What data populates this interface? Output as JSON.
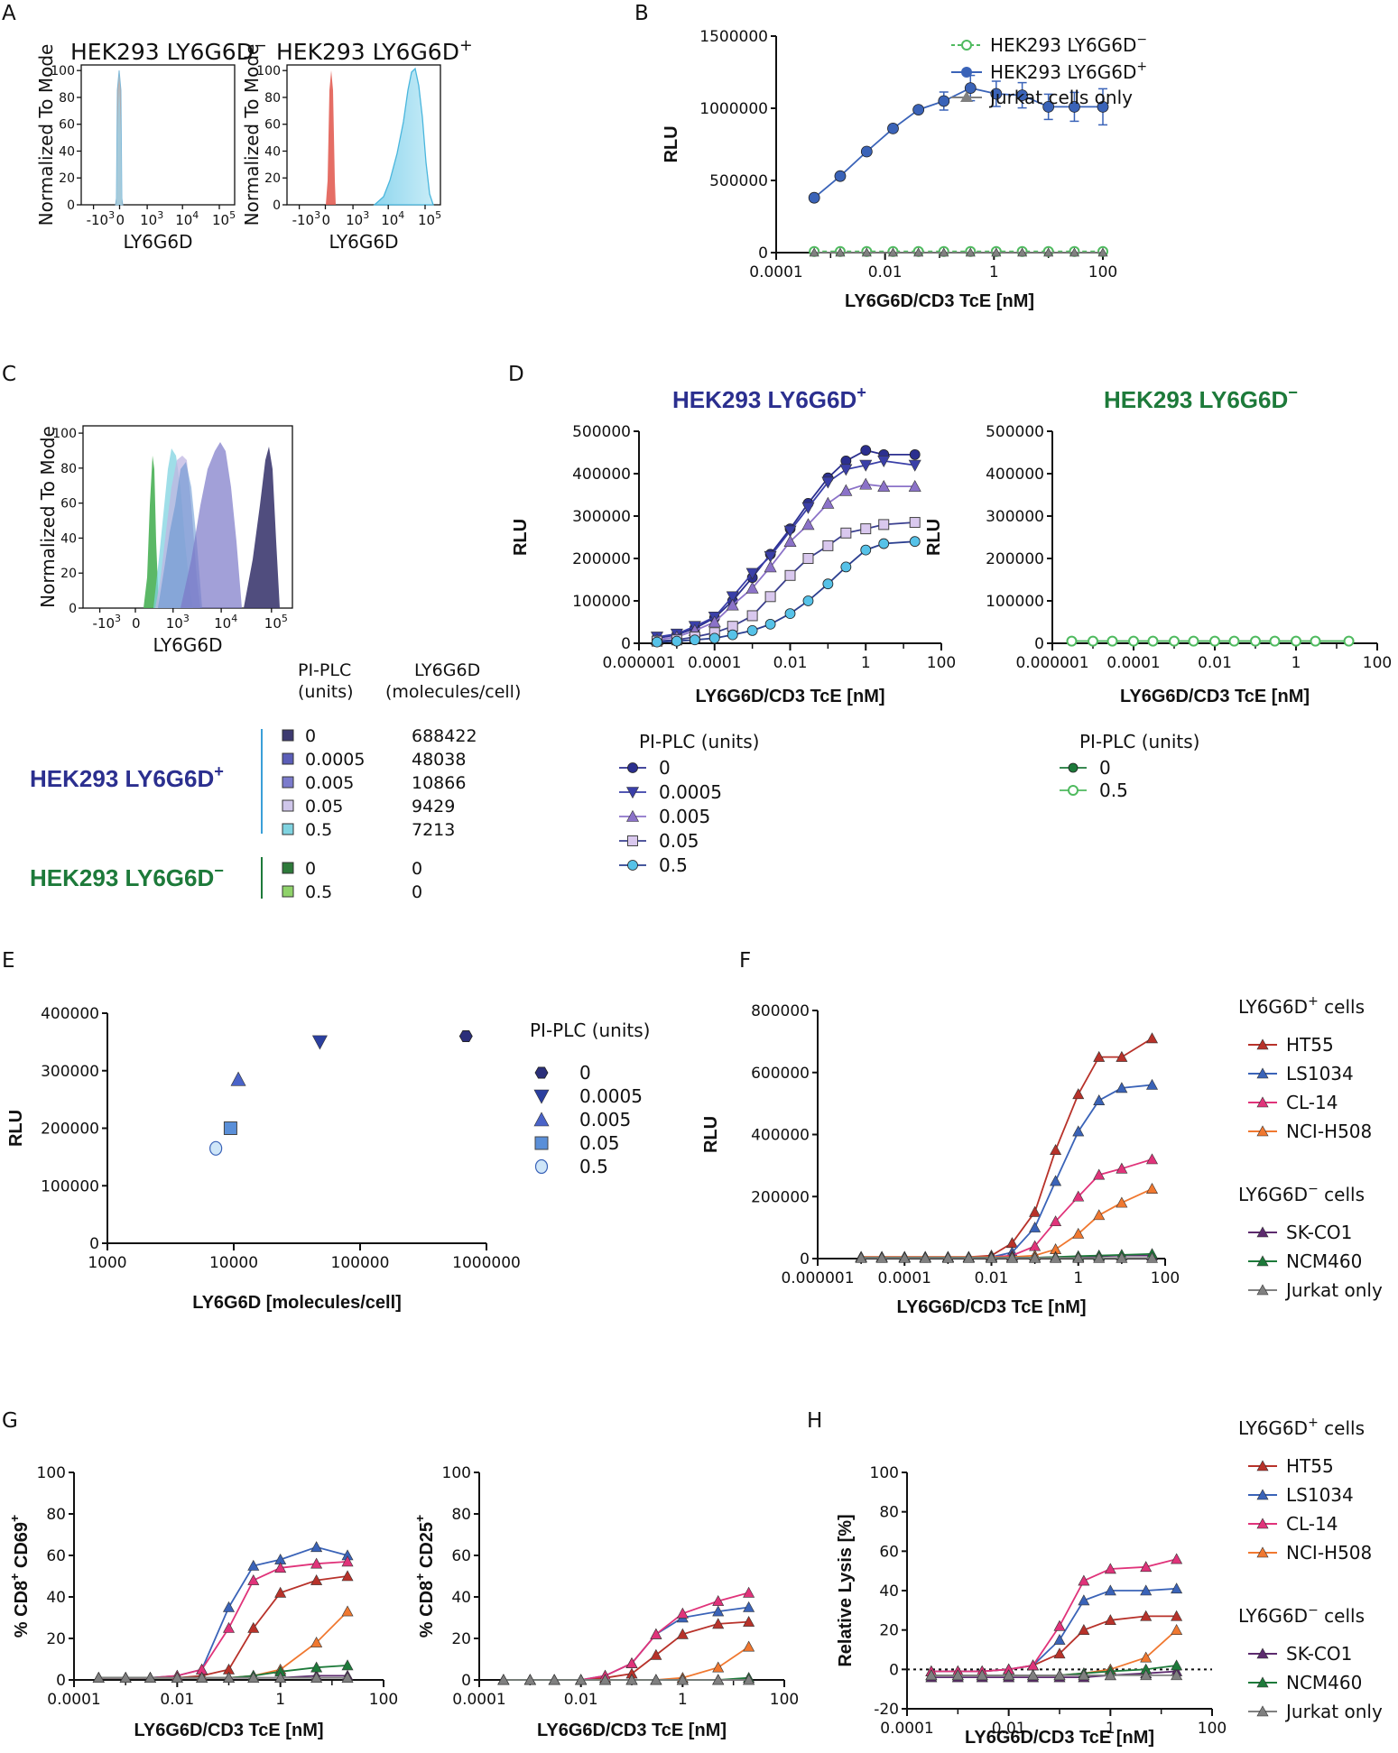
{
  "panel_letters": {
    "A": "A",
    "B": "B",
    "C": "C",
    "D": "D",
    "E": "E",
    "F": "F",
    "G": "G",
    "H": "H"
  },
  "colors": {
    "navy": "#2b2f8f",
    "blue": "#3a63b8",
    "green": "#4fba5f",
    "darkgreen": "#1d7a3a",
    "red": "#b8322a",
    "pink": "#e0337a",
    "orange": "#f07830",
    "purple": "#5c2a6e",
    "gray": "#808080",
    "hek_minus": "#1d7a3a"
  },
  "labels": {
    "hek_minus_text": "HEK293 LY6G6D",
    "minus": "−",
    "hek_plus_text": "HEK293 LY6G6D",
    "plus": "+",
    "jurkat_cells_only": "Jurkat cells only",
    "ly6g6d": "LY6G6D",
    "normalized": "Normalized To Mode",
    "rlu": "RLU",
    "tce": "LY6G6D/CD3 TcE [nM]",
    "pi_plc": "PI-PLC (units)",
    "pi_plc_l1": "PI-PLC",
    "pi_plc_l2": "(units)",
    "ly6_l1": "LY6G6D",
    "ly6_l2": "(molecules/cell)",
    "molecules": "LY6G6D [molecules/cell]",
    "ly_pos_cells": "LY6G6D",
    "ly_pos_cells_sup": "+",
    "cells": " cells",
    "ly_neg_cells": "LY6G6D",
    "ly_neg_cells_sup": "−",
    "cd69_a": "% CD8",
    "cd69_sup1": "+",
    "cd69_b": " CD69",
    "cd69_sup2": "+",
    "cd25_a": "% CD8",
    "cd25_sup1": "+",
    "cd25_b": " CD25",
    "cd25_sup2": "+",
    "lysis": "Relative Lysis [%]"
  },
  "histo_ticks": {
    "m3": "-10",
    "zero": "0",
    "p3": "10",
    "p4": "10",
    "p5": "10",
    "e3": "3",
    "e4": "4",
    "e5": "5",
    "y": [
      "0",
      "20",
      "40",
      "60",
      "80",
      "100"
    ]
  },
  "panel_c_table": {
    "plus_rows": [
      {
        "units": "0",
        "molecules": "688422"
      },
      {
        "units": "0.0005",
        "molecules": "48038"
      },
      {
        "units": "0.005",
        "molecules": "10866"
      },
      {
        "units": "0.05",
        "molecules": "9429"
      },
      {
        "units": "0.5",
        "molecules": "7213"
      }
    ],
    "minus_rows": [
      {
        "units": "0",
        "molecules": "0"
      },
      {
        "units": "0.5",
        "molecules": "0"
      }
    ]
  },
  "legend_d_plus": [
    "0",
    "0.0005",
    "0.005",
    "0.05",
    "0.5"
  ],
  "legend_d_minus": [
    "0",
    "0.5"
  ],
  "legend_e": [
    "0",
    "0.0005",
    "0.005",
    "0.05",
    "0.5"
  ],
  "legend_cells_pos": [
    "HT55",
    "LS1034",
    "CL-14",
    "NCI-H508"
  ],
  "legend_cells_neg": [
    "SK-CO1",
    "NCM460",
    "Jurkat only"
  ],
  "chart_data": [
    {
      "id": "B",
      "type": "scatter",
      "title": "",
      "xlabel": "LY6G6D/CD3 TcE [nM]",
      "ylabel": "RLU",
      "xscale": "log",
      "xlim": [
        0.0001,
        100
      ],
      "ylim": [
        0,
        1500000
      ],
      "xticks": [
        "0.0001",
        "0.01",
        "1",
        "100"
      ],
      "yticks": [
        "0",
        "500000",
        "1000000",
        "1500000"
      ],
      "x": [
        0.0005,
        0.0015,
        0.0046,
        0.014,
        0.041,
        0.12,
        0.37,
        1.1,
        3.3,
        10,
        30,
        100
      ],
      "series": [
        {
          "name": "HEK293 LY6G6D+",
          "values": [
            380000,
            530000,
            700000,
            860000,
            990000,
            1050000,
            1140000,
            1100000,
            1090000,
            1010000,
            1010000,
            1010000
          ]
        },
        {
          "name": "HEK293 LY6G6D-",
          "values": [
            8000,
            8000,
            8000,
            8000,
            8000,
            8000,
            8000,
            8000,
            8000,
            8000,
            8000,
            8000
          ]
        },
        {
          "name": "Jurkat cells only",
          "values": [
            0,
            0,
            0,
            0,
            0,
            0,
            0,
            0,
            0,
            0,
            0,
            0
          ]
        }
      ]
    },
    {
      "id": "D_plus",
      "type": "scatter",
      "title": "HEK293 LY6G6D+",
      "xlabel": "LY6G6D/CD3 TcE [nM]",
      "ylabel": "RLU",
      "xscale": "log",
      "xlim": [
        1e-06,
        100
      ],
      "ylim": [
        0,
        500000
      ],
      "xticks": [
        "0.000001",
        "0.0001",
        "0.01",
        "1",
        "100"
      ],
      "yticks": [
        "0",
        "100000",
        "200000",
        "300000",
        "400000",
        "500000"
      ],
      "x": [
        3e-06,
        1e-05,
        3e-05,
        0.0001,
        0.0003,
        0.001,
        0.003,
        0.01,
        0.03,
        0.1,
        0.3,
        1,
        3,
        20
      ],
      "series": [
        {
          "name": "0",
          "values": [
            12000,
            20000,
            35000,
            60000,
            100000,
            155000,
            210000,
            270000,
            330000,
            390000,
            430000,
            455000,
            445000,
            445000
          ]
        },
        {
          "name": "0.0005",
          "values": [
            15000,
            22000,
            40000,
            62000,
            110000,
            165000,
            205000,
            265000,
            320000,
            380000,
            410000,
            420000,
            430000,
            420000
          ]
        },
        {
          "name": "0.005",
          "values": [
            8000,
            15000,
            30000,
            50000,
            90000,
            130000,
            180000,
            240000,
            280000,
            330000,
            360000,
            375000,
            370000,
            370000
          ]
        },
        {
          "name": "0.05",
          "values": [
            5000,
            8000,
            15000,
            25000,
            40000,
            65000,
            110000,
            160000,
            200000,
            230000,
            260000,
            270000,
            280000,
            285000
          ]
        },
        {
          "name": "0.5",
          "values": [
            3000,
            5000,
            8000,
            12000,
            20000,
            30000,
            45000,
            70000,
            100000,
            140000,
            180000,
            220000,
            235000,
            240000
          ]
        }
      ]
    },
    {
      "id": "D_minus",
      "type": "scatter",
      "title": "HEK293 LY6G6D-",
      "xlabel": "LY6G6D/CD3 TcE [nM]",
      "ylabel": "RLU",
      "xscale": "log",
      "xlim": [
        1e-06,
        100
      ],
      "ylim": [
        0,
        500000
      ],
      "xticks": [
        "0.000001",
        "0.0001",
        "0.01",
        "1",
        "100"
      ],
      "yticks": [
        "0",
        "100000",
        "200000",
        "300000",
        "400000",
        "500000"
      ],
      "x": [
        3e-06,
        1e-05,
        3e-05,
        0.0001,
        0.0003,
        0.001,
        0.003,
        0.01,
        0.03,
        0.1,
        0.3,
        1,
        3,
        20
      ],
      "series": [
        {
          "name": "0",
          "values": [
            5000,
            5000,
            5000,
            5000,
            5000,
            5000,
            5000,
            5000,
            5000,
            5000,
            5000,
            5000,
            5000,
            5000
          ]
        },
        {
          "name": "0.5",
          "values": [
            5000,
            5000,
            5000,
            5000,
            5000,
            5000,
            5000,
            5000,
            5000,
            5000,
            5000,
            5000,
            5000,
            5000
          ]
        }
      ]
    },
    {
      "id": "E",
      "type": "scatter",
      "title": "",
      "xlabel": "LY6G6D [molecules/cell]",
      "ylabel": "RLU",
      "xscale": "log",
      "xlim": [
        1000,
        1000000
      ],
      "ylim": [
        0,
        400000
      ],
      "xticks": [
        "1000",
        "10000",
        "100000",
        "1000000"
      ],
      "yticks": [
        "0",
        "100000",
        "200000",
        "300000",
        "400000"
      ],
      "points": [
        {
          "name": "0",
          "x": 688422,
          "y": 360000
        },
        {
          "name": "0.0005",
          "x": 48038,
          "y": 350000
        },
        {
          "name": "0.005",
          "x": 10866,
          "y": 285000
        },
        {
          "name": "0.05",
          "x": 9429,
          "y": 200000
        },
        {
          "name": "0.5",
          "x": 7213,
          "y": 165000
        }
      ]
    },
    {
      "id": "F",
      "type": "scatter",
      "title": "",
      "xlabel": "LY6G6D/CD3 TcE [nM]",
      "ylabel": "RLU",
      "xscale": "log",
      "xlim": [
        1e-06,
        100
      ],
      "ylim": [
        0,
        800000
      ],
      "xticks": [
        "0.000001",
        "0.0001",
        "0.01",
        "1",
        "100"
      ],
      "yticks": [
        "0",
        "200000",
        "400000",
        "600000",
        "800000"
      ],
      "x": [
        1e-05,
        3e-05,
        0.0001,
        0.0003,
        0.001,
        0.003,
        0.01,
        0.03,
        0.1,
        0.3,
        1,
        3,
        10,
        50
      ],
      "series": [
        {
          "name": "HT55",
          "values": [
            5000,
            5000,
            5000,
            5000,
            5000,
            5000,
            10000,
            50000,
            150000,
            350000,
            530000,
            650000,
            650000,
            710000
          ]
        },
        {
          "name": "LS1034",
          "values": [
            5000,
            5000,
            5000,
            5000,
            5000,
            5000,
            5000,
            20000,
            100000,
            250000,
            410000,
            510000,
            550000,
            560000
          ]
        },
        {
          "name": "CL-14",
          "values": [
            5000,
            5000,
            5000,
            5000,
            5000,
            5000,
            5000,
            10000,
            40000,
            120000,
            200000,
            270000,
            290000,
            320000
          ]
        },
        {
          "name": "NCI-H508",
          "values": [
            5000,
            5000,
            5000,
            5000,
            5000,
            5000,
            5000,
            5000,
            10000,
            30000,
            80000,
            140000,
            180000,
            225000
          ]
        },
        {
          "name": "SK-CO1",
          "values": [
            3000,
            3000,
            3000,
            3000,
            3000,
            3000,
            3000,
            3000,
            3000,
            5000,
            5000,
            8000,
            10000,
            10000
          ]
        },
        {
          "name": "NCM460",
          "values": [
            3000,
            3000,
            3000,
            3000,
            3000,
            3000,
            3000,
            3000,
            3000,
            5000,
            8000,
            10000,
            12000,
            15000
          ]
        },
        {
          "name": "Jurkat only",
          "values": [
            2000,
            2000,
            2000,
            2000,
            2000,
            2000,
            2000,
            2000,
            2000,
            2000,
            2000,
            2000,
            2000,
            2000
          ]
        }
      ]
    },
    {
      "id": "G_CD69",
      "type": "scatter",
      "title": "",
      "xlabel": "LY6G6D/CD3 TcE [nM]",
      "ylabel": "% CD8+ CD69+",
      "xscale": "log",
      "xlim": [
        0.0001,
        100
      ],
      "ylim": [
        0,
        100
      ],
      "xticks": [
        "0.0001",
        "0.01",
        "1",
        "100"
      ],
      "yticks": [
        "0",
        "20",
        "40",
        "60",
        "80",
        "100"
      ],
      "x": [
        0.0003,
        0.001,
        0.003,
        0.01,
        0.03,
        0.1,
        0.3,
        1,
        5,
        20
      ],
      "series": [
        {
          "name": "HT55",
          "values": [
            1,
            1,
            1,
            1,
            2,
            5,
            25,
            42,
            48,
            50
          ]
        },
        {
          "name": "LS1034",
          "values": [
            1,
            1,
            1,
            2,
            5,
            35,
            55,
            58,
            64,
            60
          ]
        },
        {
          "name": "CL-14",
          "values": [
            1,
            1,
            1,
            2,
            5,
            25,
            48,
            54,
            56,
            57
          ]
        },
        {
          "name": "NCI-H508",
          "values": [
            1,
            1,
            1,
            1,
            1,
            1,
            2,
            5,
            18,
            33
          ]
        },
        {
          "name": "SK-CO1",
          "values": [
            1,
            1,
            1,
            1,
            1,
            1,
            1,
            1,
            2,
            2
          ]
        },
        {
          "name": "NCM460",
          "values": [
            1,
            1,
            1,
            1,
            1,
            1,
            2,
            4,
            6,
            7
          ]
        },
        {
          "name": "Jurkat only",
          "values": [
            1,
            1,
            1,
            1,
            1,
            1,
            1,
            1,
            1,
            1
          ]
        }
      ]
    },
    {
      "id": "G_CD25",
      "type": "scatter",
      "title": "",
      "xlabel": "LY6G6D/CD3 TcE [nM]",
      "ylabel": "% CD8+ CD25+",
      "xscale": "log",
      "xlim": [
        0.0001,
        100
      ],
      "ylim": [
        0,
        100
      ],
      "xticks": [
        "0.0001",
        "0.01",
        "1",
        "100"
      ],
      "yticks": [
        "0",
        "20",
        "40",
        "60",
        "80",
        "100"
      ],
      "x": [
        0.0003,
        0.001,
        0.003,
        0.01,
        0.03,
        0.1,
        0.3,
        1,
        5,
        20
      ],
      "series": [
        {
          "name": "HT55",
          "values": [
            0,
            0,
            0,
            0,
            1,
            3,
            12,
            22,
            27,
            28
          ]
        },
        {
          "name": "LS1034",
          "values": [
            0,
            0,
            0,
            0,
            2,
            8,
            22,
            30,
            33,
            35
          ]
        },
        {
          "name": "CL-14",
          "values": [
            0,
            0,
            0,
            0,
            2,
            8,
            22,
            32,
            38,
            42
          ]
        },
        {
          "name": "NCI-H508",
          "values": [
            0,
            0,
            0,
            0,
            0,
            0,
            0,
            1,
            6,
            16
          ]
        },
        {
          "name": "SK-CO1",
          "values": [
            0,
            0,
            0,
            0,
            0,
            0,
            0,
            0,
            0,
            0
          ]
        },
        {
          "name": "NCM460",
          "values": [
            0,
            0,
            0,
            0,
            0,
            0,
            0,
            0,
            0,
            1
          ]
        },
        {
          "name": "Jurkat only",
          "values": [
            0,
            0,
            0,
            0,
            0,
            0,
            0,
            0,
            0,
            0
          ]
        }
      ]
    },
    {
      "id": "H",
      "type": "scatter",
      "title": "",
      "xlabel": "LY6G6D/CD3 TcE [nM]",
      "ylabel": "Relative Lysis [%]",
      "xscale": "log",
      "xlim": [
        0.0001,
        100
      ],
      "ylim": [
        -20,
        100
      ],
      "xticks": [
        "0.0001",
        "0.01",
        "1",
        "100"
      ],
      "yticks": [
        "-20",
        "0",
        "20",
        "40",
        "60",
        "80",
        "100"
      ],
      "x": [
        0.0003,
        0.001,
        0.003,
        0.01,
        0.03,
        0.1,
        0.3,
        1,
        5,
        20
      ],
      "series": [
        {
          "name": "HT55",
          "values": [
            -1,
            -1,
            -1,
            0,
            2,
            8,
            20,
            25,
            27,
            27
          ]
        },
        {
          "name": "LS1034",
          "values": [
            -1,
            -1,
            -1,
            0,
            2,
            15,
            35,
            40,
            40,
            41
          ]
        },
        {
          "name": "CL-14",
          "values": [
            -1,
            -1,
            -1,
            0,
            2,
            22,
            45,
            51,
            52,
            56
          ]
        },
        {
          "name": "NCI-H508",
          "values": [
            -3,
            -3,
            -3,
            -3,
            -3,
            -3,
            -2,
            0,
            6,
            20
          ]
        },
        {
          "name": "SK-CO1",
          "values": [
            -4,
            -4,
            -4,
            -4,
            -4,
            -4,
            -4,
            -3,
            -2,
            -1
          ]
        },
        {
          "name": "NCM460",
          "values": [
            -3,
            -3,
            -3,
            -3,
            -3,
            -3,
            -2,
            -1,
            0,
            2
          ]
        },
        {
          "name": "Jurkat only",
          "values": [
            -3,
            -3,
            -3,
            -3,
            -3,
            -3,
            -3,
            -3,
            -3,
            -3
          ]
        }
      ]
    }
  ]
}
